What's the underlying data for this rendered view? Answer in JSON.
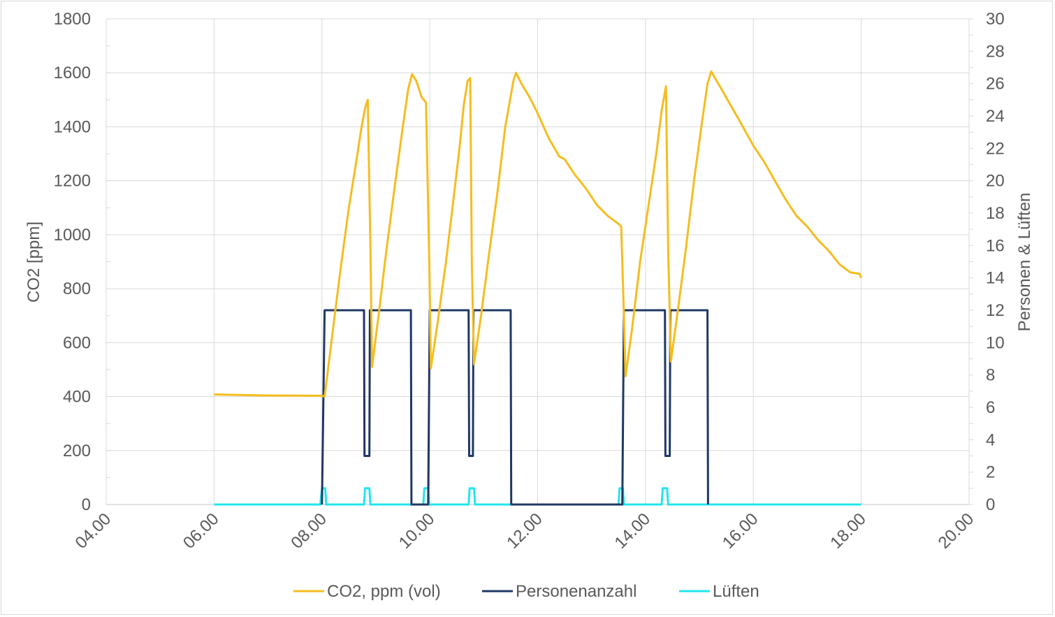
{
  "chart_data": {
    "type": "line",
    "title": "",
    "xlabel": "",
    "ylabel": "CO2 [ppm]",
    "y2label": "Personen & Lüften",
    "x_ticks": [
      "04.00",
      "06.00",
      "08.00",
      "10.00",
      "12.00",
      "14.00",
      "16.00",
      "18.00",
      "20.00"
    ],
    "xlim": [
      4,
      20
    ],
    "ylim": [
      0,
      1800
    ],
    "y_ticks": [
      "0",
      "200",
      "400",
      "600",
      "800",
      "1000",
      "1200",
      "1400",
      "1600",
      "1800"
    ],
    "y2lim": [
      0,
      30
    ],
    "y2_ticks": [
      "0",
      "2",
      "4",
      "6",
      "8",
      "10",
      "12",
      "14",
      "16",
      "18",
      "20",
      "22",
      "24",
      "26",
      "28",
      "30"
    ],
    "grid": true,
    "legend_position": "bottom",
    "colors": {
      "co2": "#f5bd1f",
      "persons": "#1f3864",
      "vent": "#22e5ee",
      "grid": "#d9d9d9",
      "text": "#595959"
    },
    "series": [
      {
        "name": "CO2, ppm (vol)",
        "axis": "left",
        "points": [
          [
            6.0,
            408
          ],
          [
            7.0,
            404
          ],
          [
            8.0,
            403
          ],
          [
            8.05,
            400
          ],
          [
            8.15,
            560
          ],
          [
            8.25,
            720
          ],
          [
            8.35,
            880
          ],
          [
            8.5,
            1100
          ],
          [
            8.62,
            1250
          ],
          [
            8.72,
            1380
          ],
          [
            8.8,
            1470
          ],
          [
            8.85,
            1500
          ],
          [
            8.9,
            950
          ],
          [
            8.93,
            510
          ],
          [
            9.05,
            700
          ],
          [
            9.2,
            950
          ],
          [
            9.35,
            1180
          ],
          [
            9.5,
            1400
          ],
          [
            9.6,
            1540
          ],
          [
            9.67,
            1595
          ],
          [
            9.75,
            1570
          ],
          [
            9.85,
            1510
          ],
          [
            9.93,
            1490
          ],
          [
            9.99,
            900
          ],
          [
            10.02,
            505
          ],
          [
            10.15,
            680
          ],
          [
            10.3,
            900
          ],
          [
            10.45,
            1150
          ],
          [
            10.55,
            1320
          ],
          [
            10.63,
            1480
          ],
          [
            10.7,
            1570
          ],
          [
            10.75,
            1580
          ],
          [
            10.78,
            900
          ],
          [
            10.82,
            520
          ],
          [
            10.95,
            700
          ],
          [
            11.1,
            930
          ],
          [
            11.25,
            1150
          ],
          [
            11.4,
            1400
          ],
          [
            11.55,
            1570
          ],
          [
            11.6,
            1600
          ],
          [
            11.7,
            1560
          ],
          [
            11.85,
            1510
          ],
          [
            12.0,
            1450
          ],
          [
            12.2,
            1360
          ],
          [
            12.4,
            1290
          ],
          [
            12.5,
            1280
          ],
          [
            12.7,
            1220
          ],
          [
            12.9,
            1170
          ],
          [
            13.1,
            1110
          ],
          [
            13.3,
            1070
          ],
          [
            13.5,
            1040
          ],
          [
            13.55,
            1030
          ],
          [
            13.6,
            700
          ],
          [
            13.63,
            475
          ],
          [
            13.75,
            650
          ],
          [
            13.9,
            900
          ],
          [
            14.05,
            1100
          ],
          [
            14.2,
            1300
          ],
          [
            14.3,
            1460
          ],
          [
            14.38,
            1550
          ],
          [
            14.42,
            950
          ],
          [
            14.47,
            530
          ],
          [
            14.6,
            720
          ],
          [
            14.75,
            950
          ],
          [
            14.9,
            1200
          ],
          [
            15.05,
            1420
          ],
          [
            15.15,
            1560
          ],
          [
            15.22,
            1605
          ],
          [
            15.35,
            1560
          ],
          [
            15.55,
            1490
          ],
          [
            15.75,
            1420
          ],
          [
            16.0,
            1330
          ],
          [
            16.2,
            1270
          ],
          [
            16.4,
            1200
          ],
          [
            16.6,
            1130
          ],
          [
            16.8,
            1070
          ],
          [
            17.0,
            1030
          ],
          [
            17.2,
            980
          ],
          [
            17.4,
            940
          ],
          [
            17.6,
            890
          ],
          [
            17.8,
            860
          ],
          [
            17.97,
            855
          ],
          [
            18.0,
            840
          ]
        ]
      },
      {
        "name": "Personenanzahl",
        "axis": "right",
        "points": [
          [
            8.0,
            0
          ],
          [
            8.05,
            12
          ],
          [
            8.78,
            12
          ],
          [
            8.79,
            3
          ],
          [
            8.88,
            3
          ],
          [
            8.89,
            12
          ],
          [
            9.65,
            12
          ],
          [
            9.66,
            0
          ],
          [
            9.97,
            0
          ],
          [
            10.0,
            12
          ],
          [
            10.72,
            12
          ],
          [
            10.73,
            3
          ],
          [
            10.8,
            3
          ],
          [
            10.81,
            12
          ],
          [
            11.5,
            12
          ],
          [
            11.51,
            0
          ],
          [
            13.57,
            0
          ],
          [
            13.6,
            12
          ],
          [
            14.36,
            12
          ],
          [
            14.37,
            3
          ],
          [
            14.45,
            3
          ],
          [
            14.46,
            12
          ],
          [
            15.15,
            12
          ],
          [
            15.16,
            0
          ]
        ]
      },
      {
        "name": "Lüften",
        "axis": "right",
        "points": [
          [
            6.0,
            0
          ],
          [
            7.97,
            0
          ],
          [
            8.0,
            1
          ],
          [
            8.06,
            1
          ],
          [
            8.08,
            0
          ],
          [
            8.78,
            0
          ],
          [
            8.8,
            1
          ],
          [
            8.88,
            1
          ],
          [
            8.9,
            0
          ],
          [
            9.88,
            0
          ],
          [
            9.9,
            1
          ],
          [
            9.97,
            1
          ],
          [
            9.99,
            0
          ],
          [
            10.72,
            0
          ],
          [
            10.74,
            1
          ],
          [
            10.82,
            1
          ],
          [
            10.84,
            0
          ],
          [
            13.5,
            0
          ],
          [
            13.52,
            1
          ],
          [
            13.58,
            1
          ],
          [
            13.6,
            0
          ],
          [
            14.3,
            0
          ],
          [
            14.32,
            1
          ],
          [
            14.4,
            1
          ],
          [
            14.42,
            0
          ],
          [
            18.0,
            0
          ]
        ]
      }
    ]
  }
}
